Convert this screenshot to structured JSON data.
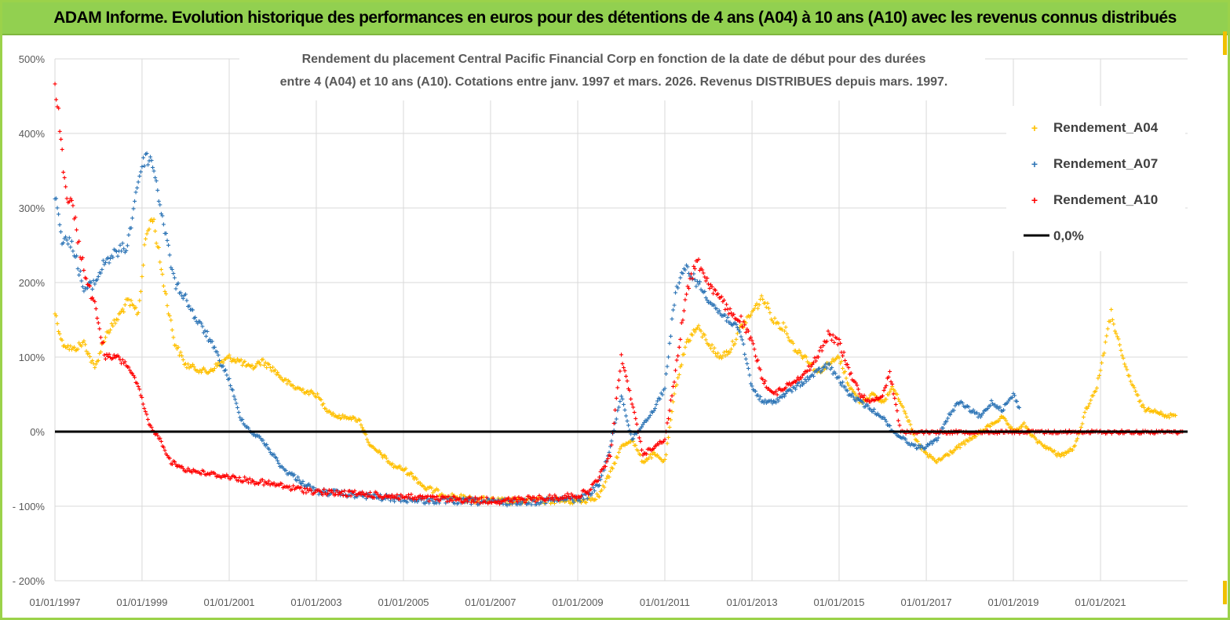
{
  "banner": {
    "title": "ADAM Informe. Evolution historique des performances en euros pour des détentions de 4 ans (A04) à 10 ans (A10) avec les revenus connus distribués"
  },
  "colors": {
    "banner_bg": "#92d050",
    "a04": "#ffc000",
    "a07": "#2e75b6",
    "a10": "#ff0000",
    "zero_line": "#000000",
    "grid": "#d9d9d9"
  },
  "chart_data": {
    "type": "scatter",
    "title": [
      "Rendement du placement Central Pacific Financial Corp en fonction de la date de début pour des durées",
      "entre 4 (A04) et 10 ans (A10). Cotations entre janv. 1997 et mars. 2026. Revenus DISTRIBUES depuis mars. 1997."
    ],
    "xlabel": "",
    "ylabel": "",
    "x_axis": {
      "type": "date",
      "range": [
        "1997-01-01",
        "2023-01-01"
      ],
      "tick_labels": [
        "01/01/1997",
        "01/01/1999",
        "01/01/2001",
        "01/01/2003",
        "01/01/2005",
        "01/01/2007",
        "01/01/2009",
        "01/01/2011",
        "01/01/2013",
        "01/01/2015",
        "01/01/2017",
        "01/01/2019",
        "01/01/2021"
      ]
    },
    "y_axis": {
      "range": [
        -200,
        500
      ],
      "ticks": [
        -200,
        -100,
        0,
        100,
        200,
        300,
        400,
        500
      ],
      "tick_labels": [
        "- 200%",
        "- 100%",
        "0%",
        "100%",
        "200%",
        "300%",
        "400%",
        "500%"
      ]
    },
    "grid": true,
    "legend_position": "top-right",
    "legend": [
      "Rendement_A04",
      "Rendement_A07",
      "Rendement_A10",
      "0,0%"
    ],
    "series": [
      {
        "name": "Rendement_A04",
        "x": [
          "1997-01-01",
          "1997-03-01",
          "1997-06-01",
          "1997-09-01",
          "1997-12-01",
          "1998-03-01",
          "1998-06-01",
          "1998-09-01",
          "1998-12-01",
          "1999-02-01",
          "1999-04-01",
          "1999-07-01",
          "1999-10-01",
          "2000-01-01",
          "2000-04-01",
          "2000-07-01",
          "2000-10-01",
          "2001-01-01",
          "2001-04-01",
          "2001-07-01",
          "2001-10-01",
          "2002-01-01",
          "2002-04-01",
          "2002-07-01",
          "2002-10-01",
          "2003-01-01",
          "2003-04-01",
          "2003-07-01",
          "2003-10-01",
          "2004-01-01",
          "2004-04-01",
          "2004-07-01",
          "2004-10-01",
          "2005-01-01",
          "2005-04-01",
          "2005-07-01",
          "2006-01-01",
          "2006-07-01",
          "2007-01-01",
          "2007-07-01",
          "2008-01-01",
          "2008-07-01",
          "2009-01-01",
          "2009-04-01",
          "2009-07-01",
          "2009-10-01",
          "2010-01-01",
          "2010-04-01",
          "2010-07-01",
          "2010-10-01",
          "2011-01-01",
          "2011-04-01",
          "2011-07-01",
          "2011-10-01",
          "2012-01-01",
          "2012-04-01",
          "2012-07-01",
          "2012-10-01",
          "2013-01-01",
          "2013-04-01",
          "2013-07-01",
          "2013-10-01",
          "2014-01-01",
          "2014-04-01",
          "2014-07-01",
          "2014-10-01",
          "2015-01-01",
          "2015-04-01",
          "2015-07-01",
          "2015-10-01",
          "2016-01-01",
          "2016-04-01",
          "2016-07-01",
          "2016-10-01",
          "2017-01-01",
          "2017-04-01",
          "2017-07-01",
          "2017-10-01",
          "2018-01-01",
          "2018-04-01",
          "2018-07-01",
          "2018-10-01",
          "2019-01-01",
          "2019-04-01",
          "2019-07-01",
          "2019-10-01",
          "2020-01-01",
          "2020-03-01",
          "2020-06-01",
          "2020-09-01",
          "2020-12-01",
          "2021-02-01",
          "2021-04-01",
          "2021-07-01",
          "2021-10-01",
          "2022-01-01",
          "2022-04-01",
          "2022-07-01",
          "2022-10-01"
        ],
        "y": [
          160,
          120,
          110,
          120,
          85,
          130,
          150,
          175,
          160,
          260,
          290,
          200,
          120,
          90,
          85,
          80,
          90,
          100,
          95,
          85,
          95,
          85,
          70,
          60,
          55,
          50,
          30,
          20,
          20,
          15,
          -20,
          -30,
          -45,
          -50,
          -60,
          -75,
          -85,
          -90,
          -92,
          -93,
          -92,
          -92,
          -93,
          -90,
          -85,
          -55,
          -20,
          -10,
          -40,
          -30,
          -40,
          60,
          120,
          140,
          120,
          100,
          110,
          140,
          160,
          180,
          150,
          140,
          110,
          100,
          80,
          90,
          100,
          60,
          40,
          50,
          40,
          60,
          30,
          -10,
          -30,
          -40,
          -30,
          -20,
          -10,
          0,
          10,
          20,
          0,
          10,
          -10,
          -20,
          -30,
          -30,
          -20,
          30,
          60,
          110,
          160,
          100,
          60,
          30,
          30,
          20,
          25
        ]
      },
      {
        "name": "Rendement_A07",
        "x": [
          "1997-01-01",
          "1997-03-01",
          "1997-06-01",
          "1997-09-01",
          "1997-12-01",
          "1998-03-01",
          "1998-06-01",
          "1998-09-01",
          "1998-12-01",
          "1999-02-01",
          "1999-04-01",
          "1999-07-01",
          "1999-10-01",
          "2000-01-01",
          "2000-04-01",
          "2000-07-01",
          "2000-10-01",
          "2001-01-01",
          "2001-04-01",
          "2001-07-01",
          "2001-10-01",
          "2002-01-01",
          "2002-04-01",
          "2002-07-01",
          "2002-10-01",
          "2003-01-01",
          "2003-07-01",
          "2004-01-01",
          "2004-07-01",
          "2005-01-01",
          "2005-07-01",
          "2006-01-01",
          "2006-07-01",
          "2007-01-01",
          "2007-07-01",
          "2008-01-01",
          "2008-07-01",
          "2009-01-01",
          "2009-04-01",
          "2009-07-01",
          "2009-10-01",
          "2010-01-01",
          "2010-04-01",
          "2010-07-01",
          "2010-10-01",
          "2011-01-01",
          "2011-04-01",
          "2011-07-01",
          "2011-10-01",
          "2012-01-01",
          "2012-04-01",
          "2012-07-01",
          "2012-10-01",
          "2013-01-01",
          "2013-04-01",
          "2013-07-01",
          "2013-10-01",
          "2014-01-01",
          "2014-04-01",
          "2014-07-01",
          "2014-10-01",
          "2015-01-01",
          "2015-04-01",
          "2015-07-01",
          "2015-10-01",
          "2016-01-01",
          "2016-04-01",
          "2016-07-01",
          "2016-10-01",
          "2017-01-01",
          "2017-04-01",
          "2017-07-01",
          "2017-10-01",
          "2018-01-01",
          "2018-04-01",
          "2018-07-01",
          "2018-10-01",
          "2019-01-01",
          "2019-03-01"
        ],
        "y": [
          320,
          260,
          250,
          190,
          200,
          230,
          240,
          250,
          340,
          370,
          360,
          280,
          200,
          180,
          150,
          130,
          100,
          70,
          20,
          0,
          -10,
          -30,
          -50,
          -60,
          -70,
          -80,
          -82,
          -85,
          -88,
          -90,
          -92,
          -93,
          -93,
          -94,
          -94,
          -93,
          -91,
          -90,
          -85,
          -70,
          -20,
          50,
          -10,
          10,
          30,
          60,
          190,
          220,
          200,
          180,
          160,
          150,
          130,
          60,
          40,
          40,
          50,
          60,
          70,
          80,
          90,
          70,
          50,
          40,
          30,
          20,
          0,
          -10,
          -20,
          -20,
          -10,
          20,
          40,
          30,
          20,
          40,
          30,
          50,
          30
        ]
      },
      {
        "name": "Rendement_A10",
        "x": [
          "1997-01-01",
          "1997-02-01",
          "1997-04-01",
          "1997-06-01",
          "1997-08-01",
          "1997-10-01",
          "1997-12-01",
          "1998-03-01",
          "1998-06-01",
          "1998-09-01",
          "1998-12-01",
          "1999-03-01",
          "1999-06-01",
          "1999-09-01",
          "2000-01-01",
          "2000-06-01",
          "2001-01-01",
          "2001-06-01",
          "2002-01-01",
          "2002-06-01",
          "2003-01-01",
          "2003-06-01",
          "2004-01-01",
          "2004-06-01",
          "2005-01-01",
          "2005-06-01",
          "2006-01-01",
          "2006-06-01",
          "2007-01-01",
          "2007-06-01",
          "2008-01-01",
          "2008-06-01",
          "2009-01-01",
          "2009-04-01",
          "2009-07-01",
          "2009-10-01",
          "2010-01-01",
          "2010-04-01",
          "2010-07-01",
          "2010-10-01",
          "2011-01-01",
          "2011-04-01",
          "2011-07-01",
          "2011-10-01",
          "2012-01-01",
          "2012-04-01",
          "2012-07-01",
          "2012-10-01",
          "2013-01-01",
          "2013-04-01",
          "2013-07-01",
          "2013-10-01",
          "2014-01-01",
          "2014-04-01",
          "2014-07-01",
          "2014-10-01",
          "2015-01-01",
          "2015-04-01",
          "2015-07-01",
          "2015-10-01",
          "2016-01-01",
          "2016-03-01",
          "2016-06-01",
          "2017-01-01",
          "2018-01-01",
          "2019-01-01",
          "2020-01-01",
          "2021-01-01",
          "2022-01-01",
          "2022-12-01"
        ],
        "y": [
          460,
          430,
          320,
          300,
          240,
          200,
          170,
          100,
          100,
          90,
          60,
          10,
          -10,
          -40,
          -50,
          -55,
          -60,
          -65,
          -70,
          -75,
          -80,
          -82,
          -83,
          -85,
          -87,
          -89,
          -90,
          -91,
          -92,
          -92,
          -90,
          -88,
          -85,
          -80,
          -60,
          -30,
          100,
          40,
          -30,
          -20,
          -10,
          80,
          190,
          230,
          200,
          180,
          160,
          150,
          120,
          70,
          50,
          60,
          70,
          80,
          100,
          130,
          120,
          80,
          50,
          40,
          50,
          80,
          0,
          0,
          0,
          0,
          0,
          0,
          0,
          0
        ]
      },
      {
        "name": "0,0%",
        "type": "line",
        "x": [
          "1997-01-01",
          "2023-01-01"
        ],
        "y": [
          0,
          0
        ]
      }
    ]
  }
}
